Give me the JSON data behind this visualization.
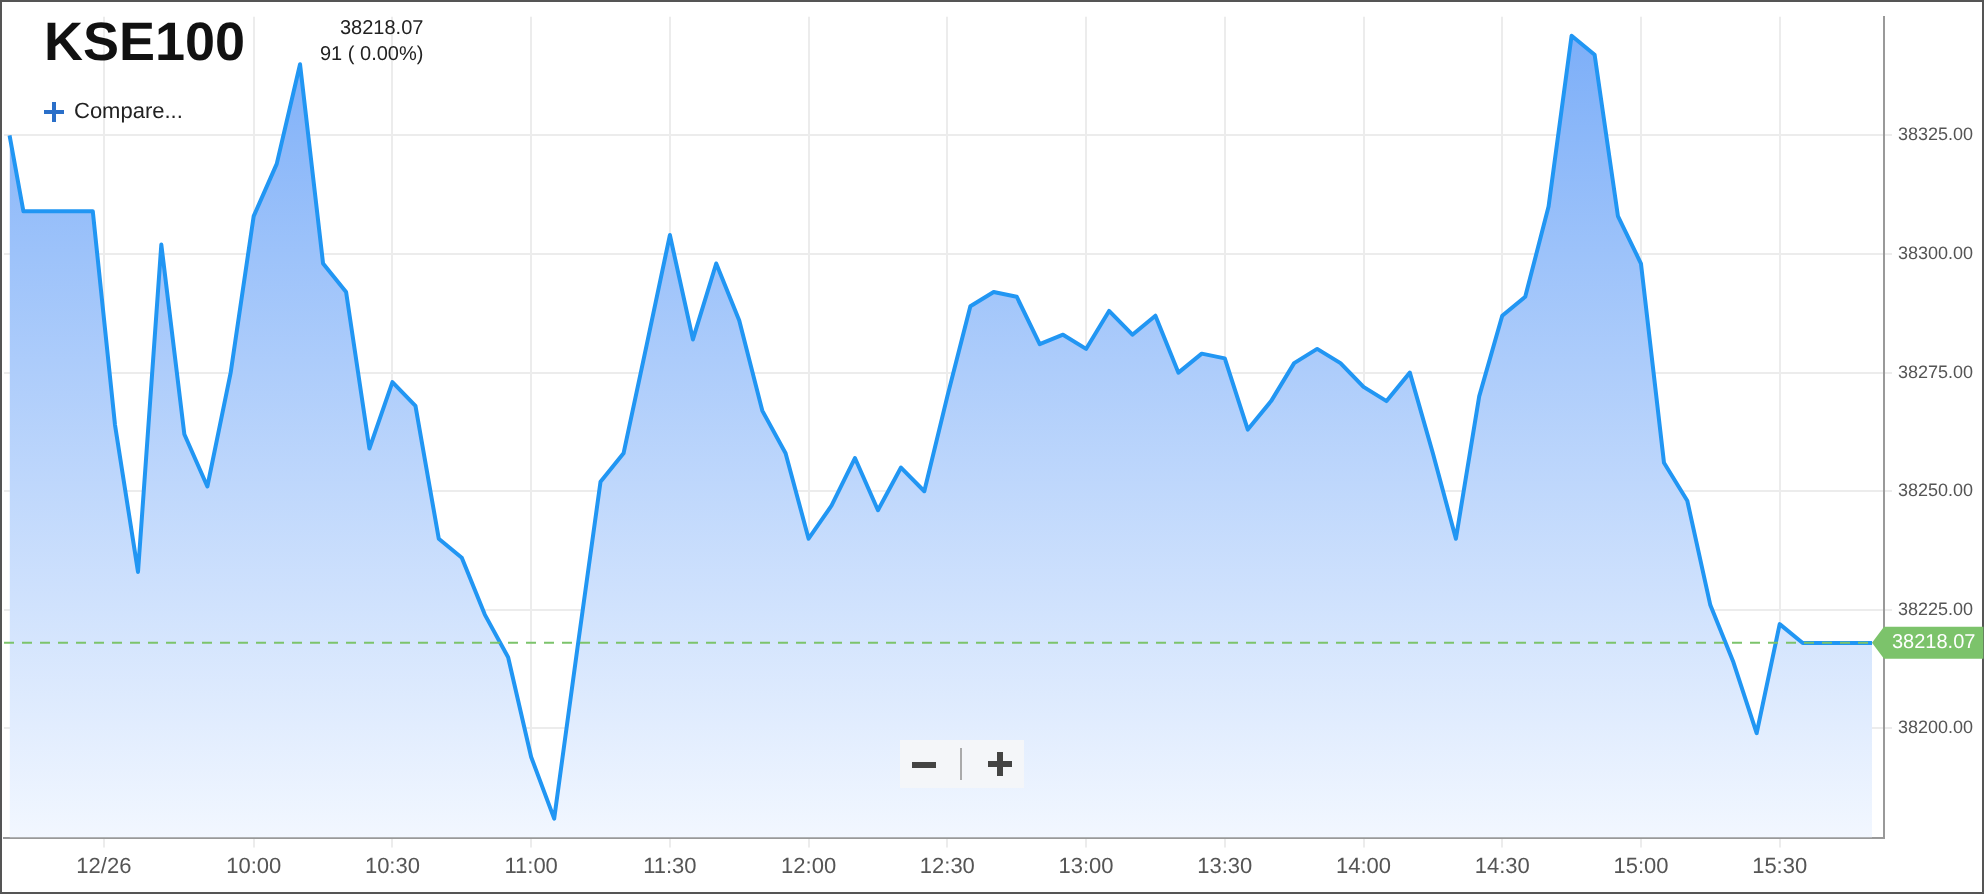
{
  "chart_data": {
    "type": "area",
    "title": "KSE100",
    "subtitle": "38218.07",
    "annotations": [
      "91 ( 0.00%)",
      "Compare..."
    ],
    "x": [
      9.12,
      9.17,
      9.42,
      9.5,
      9.583,
      9.667,
      9.75,
      9.833,
      9.917,
      10,
      10.083,
      10.167,
      10.25,
      10.333,
      10.417,
      10.5,
      10.583,
      10.667,
      10.75,
      10.833,
      10.917,
      11,
      11.083,
      11.167,
      11.25,
      11.333,
      11.417,
      11.5,
      11.583,
      11.667,
      11.75,
      11.833,
      11.917,
      12,
      12.083,
      12.167,
      12.25,
      12.333,
      12.417,
      12.5,
      12.583,
      12.667,
      12.75,
      12.833,
      12.917,
      13,
      13.083,
      13.167,
      13.25,
      13.333,
      13.417,
      13.5,
      13.583,
      13.667,
      13.75,
      13.833,
      13.917,
      14,
      14.083,
      14.167,
      14.25,
      14.333,
      14.417,
      14.5,
      14.583,
      14.667,
      14.75,
      14.833,
      14.917,
      15,
      15.083,
      15.167,
      15.25,
      15.333,
      15.417,
      15.5,
      15.583,
      15.667,
      15.75,
      15.833
    ],
    "series": [
      {
        "color": "#2196f3",
        "values": [
          38325,
          38309,
          38309,
          38264,
          38233,
          38302,
          38262,
          38251,
          38275,
          38308,
          38319,
          38340,
          38298,
          38292,
          38259,
          38273,
          38268,
          38240,
          38236,
          38224,
          38215,
          38194,
          38181,
          38217,
          38252,
          38258,
          38281,
          38304,
          38282,
          38298,
          38286,
          38267,
          38258,
          38240,
          38247,
          38257,
          38246,
          38255,
          38250,
          38270,
          38289,
          38292,
          38291,
          38281,
          38283,
          38280,
          38288,
          38283,
          38287,
          38275,
          38279,
          38278,
          38263,
          38269,
          38277,
          38280,
          38277,
          38272,
          38269,
          38275,
          38258,
          38240,
          38270,
          38287,
          38291,
          38310,
          38346,
          38342,
          38308,
          38298,
          38256,
          38248,
          38226,
          38214,
          38199,
          38222,
          38218,
          38218,
          38218,
          38218
        ]
      }
    ],
    "xlim": [
      9.1,
      15.876
    ],
    "xticks": [
      {
        "value": 9.46,
        "label": "12/26"
      },
      {
        "value": 10,
        "label": "10:00"
      },
      {
        "value": 10.5,
        "label": "10:30"
      },
      {
        "value": 11,
        "label": "11:00"
      },
      {
        "value": 11.5,
        "label": "11:30"
      },
      {
        "value": 12,
        "label": "12:00"
      },
      {
        "value": 12.5,
        "label": "12:30"
      },
      {
        "value": 13,
        "label": "13:00"
      },
      {
        "value": 13.5,
        "label": "13:30"
      },
      {
        "value": 14,
        "label": "14:00"
      },
      {
        "value": 14.5,
        "label": "14:30"
      },
      {
        "value": 15,
        "label": "15:00"
      },
      {
        "value": 15.5,
        "label": "15:30"
      }
    ],
    "ylim": [
      38177,
      38350
    ],
    "yticks": [
      {
        "value": 38200,
        "label": "38200.00"
      },
      {
        "value": 38225,
        "label": "38225.00"
      },
      {
        "value": 38250,
        "label": "38250.00"
      },
      {
        "value": 38275,
        "label": "38275.00"
      },
      {
        "value": 38300,
        "label": "38300.00"
      },
      {
        "value": 38325,
        "label": "38325.00"
      }
    ],
    "ref_lines": [
      {
        "axis": "y",
        "value": 38218.07,
        "label": "38218.07",
        "color": "#7cc36b",
        "line_style": "dashed"
      }
    ],
    "grid": true,
    "legend": false,
    "marker": "none",
    "line_style": "solid"
  }
}
